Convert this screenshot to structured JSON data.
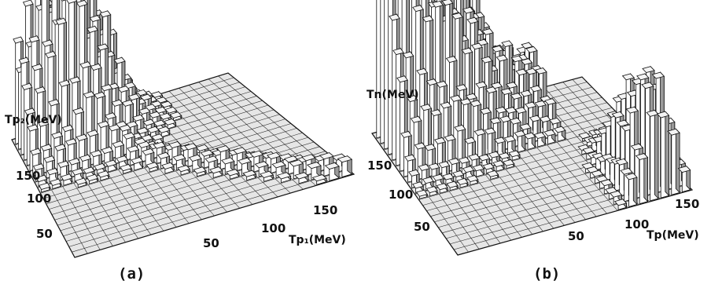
{
  "chart_data": [
    {
      "type": "bar3d",
      "panel_label": "(a)",
      "x_axis_label": "Tp₁(MeV)",
      "y_axis_label": "Tp₂(MeV)",
      "x_ticks": [
        "50",
        "100",
        "150"
      ],
      "y_ticks": [
        "50",
        "100",
        "150"
      ],
      "xlim": [
        0,
        180
      ],
      "ylim": [
        0,
        180
      ],
      "grid": true,
      "peak": {
        "x": 40,
        "y": 170,
        "relative_height": 1.0
      },
      "ridge": "falling toward the diagonal x + y ≈ 180 MeV"
    },
    {
      "type": "bar3d",
      "panel_label": "(b)",
      "x_axis_label": "Tp(MeV)",
      "y_axis_label": "Tn(MeV)",
      "x_ticks": [
        "50",
        "100",
        "150"
      ],
      "y_ticks": [
        "50",
        "100",
        "150"
      ],
      "xlim": [
        0,
        180
      ],
      "ylim": [
        0,
        180
      ],
      "grid": true,
      "peaks": [
        {
          "x": 5,
          "y": 175,
          "relative_height": 0.75
        },
        {
          "x": 45,
          "y": 175,
          "relative_height": 1.0
        },
        {
          "x": 155,
          "y": 25,
          "relative_height": 0.65
        }
      ]
    }
  ]
}
